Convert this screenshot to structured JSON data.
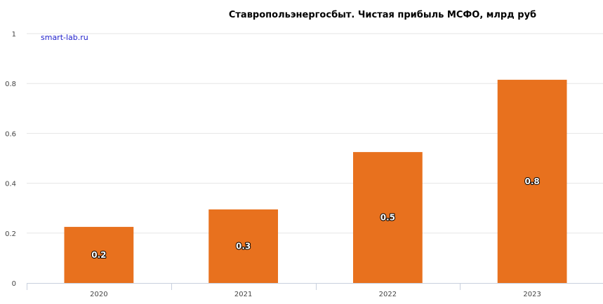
{
  "chart_data": {
    "type": "bar",
    "title": "Ставропольэнергосбыт. Чистая прибыль МСФО, млрд руб",
    "watermark": "smart-lab.ru",
    "categories": [
      "2020",
      "2021",
      "2022",
      "2023"
    ],
    "values": [
      0.225,
      0.295,
      0.525,
      0.815
    ],
    "data_labels": [
      "0.2",
      "0.3",
      "0.5",
      "0.8"
    ],
    "yticks": [
      "0",
      "0.2",
      "0.4",
      "0.6",
      "0.8",
      "1"
    ],
    "ylim": [
      0,
      1
    ],
    "grid": true,
    "bar_color": "#e8711e",
    "xlabel": "",
    "ylabel": ""
  }
}
